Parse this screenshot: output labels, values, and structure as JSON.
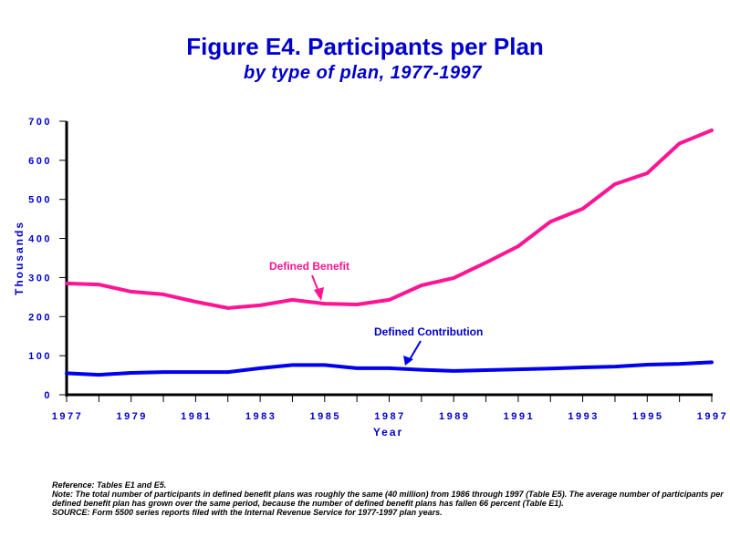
{
  "chart_data": {
    "type": "line",
    "title": "Figure E4.  Participants per Plan",
    "subtitle": "by type of plan, 1977-1997",
    "xlabel": "Year",
    "ylabel": "Thousands",
    "ylim": [
      0,
      700
    ],
    "xlim": [
      1977,
      1997
    ],
    "yticks": [
      0,
      100,
      200,
      300,
      400,
      500,
      600,
      700
    ],
    "xtick_labels": [
      "1977",
      "1979",
      "1981",
      "1983",
      "1985",
      "1987",
      "1989",
      "1991",
      "1993",
      "1995",
      "1997"
    ],
    "x": [
      1977,
      1978,
      1979,
      1980,
      1981,
      1982,
      1983,
      1984,
      1985,
      1986,
      1987,
      1988,
      1989,
      1990,
      1991,
      1992,
      1993,
      1994,
      1995,
      1996,
      1997
    ],
    "grid": false,
    "legend": "none (inline annotations)",
    "series": [
      {
        "name": "Defined Benefit",
        "color": "#ff1493",
        "values": [
          285,
          282,
          264,
          257,
          238,
          222,
          229,
          243,
          233,
          231,
          243,
          280,
          299,
          338,
          380,
          443,
          476,
          539,
          567,
          643,
          677
        ]
      },
      {
        "name": "Defined Contribution",
        "color": "#0000ee",
        "values": [
          55,
          51,
          56,
          58,
          58,
          58,
          68,
          76,
          76,
          68,
          68,
          64,
          61,
          63,
          65,
          67,
          70,
          72,
          77,
          79,
          83
        ]
      }
    ],
    "annotations": [
      {
        "text": "Defined Benefit",
        "series": "Defined Benefit",
        "points_to_year": 1985
      },
      {
        "text": "Defined Contribution",
        "series": "Defined Contribution",
        "points_to_year": 1987.5
      }
    ]
  },
  "notes": {
    "reference": "Reference: Tables  E1 and E5.",
    "note": "Note: The total number of participants in defined benefit plans was roughly the same (40 million) from 1986 through 1997 (Table E5).  The average number of participants per defined benefit plan has grown over the same period, because the  number of defined benefit plans has fallen 66 percent (Table E1).",
    "source": "SOURCE: Form 5500 series reports filed with the Internal Revenue Service for 1977-1997 plan years."
  }
}
